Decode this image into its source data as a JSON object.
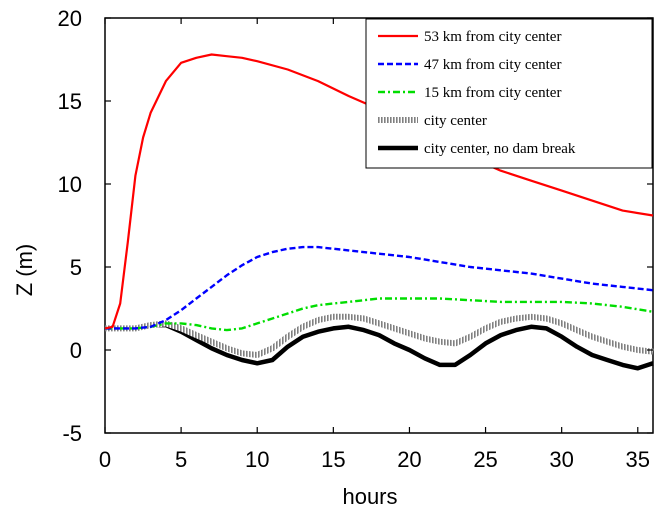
{
  "chart_data": {
    "type": "line",
    "title": "",
    "xlabel": "hours",
    "ylabel": "Z (m)",
    "xlim": [
      0,
      36
    ],
    "ylim": [
      -5,
      20
    ],
    "xticks": [
      0,
      5,
      10,
      15,
      20,
      25,
      30,
      35
    ],
    "yticks": [
      -5,
      0,
      5,
      10,
      15,
      20
    ],
    "grid": false,
    "legend_position": "top-right",
    "series": [
      {
        "name": "53 km from city center",
        "color": "#ff0000",
        "style": "solid",
        "x": [
          0,
          0.5,
          1,
          1.5,
          2,
          2.5,
          3,
          4,
          5,
          6,
          7,
          8,
          9,
          10,
          12,
          14,
          16,
          18,
          20,
          22,
          24,
          26,
          28,
          30,
          32,
          34,
          36
        ],
        "y": [
          1.3,
          1.4,
          2.8,
          6.5,
          10.5,
          12.8,
          14.3,
          16.2,
          17.3,
          17.6,
          17.8,
          17.7,
          17.6,
          17.4,
          16.9,
          16.2,
          15.3,
          14.5,
          13.5,
          12.4,
          11.6,
          10.8,
          10.2,
          9.6,
          9.0,
          8.4,
          8.1
        ]
      },
      {
        "name": "47 km from city center",
        "color": "#0000ff",
        "style": "dashed",
        "x": [
          0,
          2,
          3,
          4,
          5,
          6,
          7,
          8,
          9,
          10,
          11,
          12,
          13,
          14,
          16,
          18,
          20,
          22,
          24,
          26,
          28,
          30,
          32,
          34,
          36
        ],
        "y": [
          1.3,
          1.3,
          1.4,
          1.8,
          2.4,
          3.1,
          3.8,
          4.5,
          5.1,
          5.6,
          5.9,
          6.1,
          6.2,
          6.2,
          6.0,
          5.8,
          5.6,
          5.3,
          5.0,
          4.8,
          4.6,
          4.3,
          4.0,
          3.8,
          3.6
        ]
      },
      {
        "name": "15 km from city center",
        "color": "#00dd00",
        "style": "dash-dot",
        "x": [
          0,
          2,
          3,
          4,
          5,
          6,
          7,
          8,
          9,
          10,
          11,
          12,
          13,
          14,
          15,
          16,
          17,
          18,
          19,
          20,
          22,
          24,
          26,
          28,
          30,
          32,
          34,
          36
        ],
        "y": [
          1.3,
          1.3,
          1.4,
          1.6,
          1.6,
          1.5,
          1.3,
          1.2,
          1.3,
          1.6,
          1.9,
          2.2,
          2.5,
          2.7,
          2.8,
          2.9,
          3.0,
          3.1,
          3.1,
          3.1,
          3.1,
          3.0,
          2.9,
          2.9,
          2.9,
          2.8,
          2.6,
          2.3
        ]
      },
      {
        "name": "city center",
        "color": "#999999",
        "style": "hatched",
        "x": [
          0,
          2,
          3,
          4,
          5,
          6,
          7,
          8,
          9,
          10,
          11,
          12,
          13,
          14,
          15,
          16,
          17,
          18,
          19,
          20,
          21,
          22,
          23,
          24,
          25,
          26,
          27,
          28,
          29,
          30,
          31,
          32,
          33,
          34,
          35,
          36
        ],
        "y": [
          1.3,
          1.3,
          1.5,
          1.6,
          1.3,
          0.9,
          0.5,
          0.1,
          -0.2,
          -0.3,
          0.1,
          0.8,
          1.4,
          1.8,
          2.0,
          2.0,
          1.9,
          1.6,
          1.3,
          1.0,
          0.7,
          0.5,
          0.4,
          0.8,
          1.3,
          1.7,
          1.9,
          2.0,
          1.9,
          1.6,
          1.2,
          0.8,
          0.5,
          0.2,
          0.0,
          -0.1
        ]
      },
      {
        "name": "city center, no dam break",
        "color": "#000000",
        "style": "thick",
        "x": [
          0,
          2,
          3,
          4,
          5,
          6,
          7,
          8,
          9,
          10,
          11,
          12,
          13,
          14,
          15,
          16,
          17,
          18,
          19,
          20,
          21,
          22,
          23,
          24,
          25,
          26,
          27,
          28,
          29,
          30,
          31,
          32,
          33,
          34,
          35,
          36
        ],
        "y": [
          1.3,
          1.3,
          1.5,
          1.5,
          1.1,
          0.6,
          0.1,
          -0.3,
          -0.6,
          -0.8,
          -0.6,
          0.2,
          0.8,
          1.1,
          1.3,
          1.4,
          1.2,
          0.9,
          0.4,
          0.0,
          -0.5,
          -0.9,
          -0.9,
          -0.3,
          0.4,
          0.9,
          1.2,
          1.4,
          1.3,
          0.8,
          0.2,
          -0.3,
          -0.6,
          -0.9,
          -1.1,
          -0.8
        ]
      }
    ]
  }
}
